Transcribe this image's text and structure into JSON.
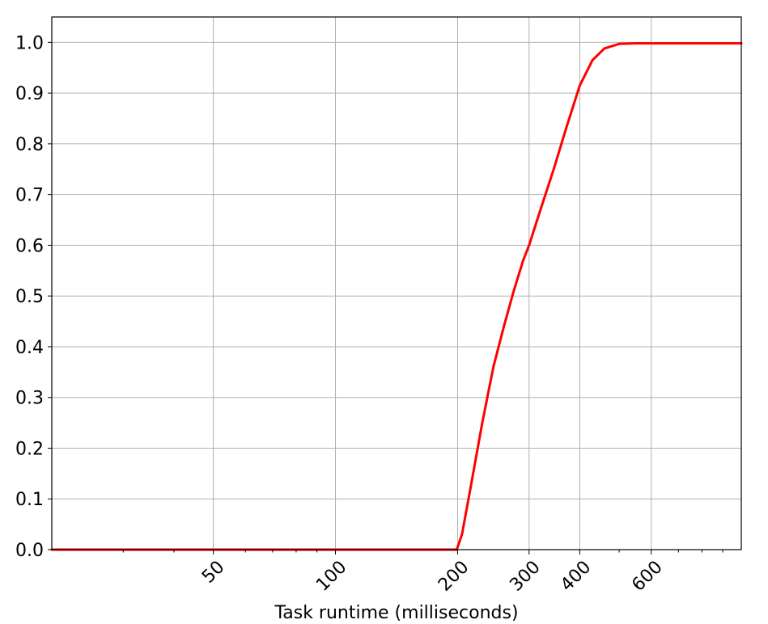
{
  "chart_data": {
    "type": "line",
    "xscale": "log",
    "xlim": [
      20,
      1000
    ],
    "ylim": [
      0,
      1.05
    ],
    "xlabel": "Task runtime (milliseconds)",
    "ylabel": "",
    "title": "",
    "grid": true,
    "x_ticks": [
      {
        "value": 50,
        "label": "50"
      },
      {
        "value": 100,
        "label": "100"
      },
      {
        "value": 200,
        "label": "200"
      },
      {
        "value": 300,
        "label": "300"
      },
      {
        "value": 400,
        "label": "400"
      },
      {
        "value": 600,
        "label": "600"
      }
    ],
    "y_ticks": [
      {
        "value": 0.0,
        "label": "0.0"
      },
      {
        "value": 0.1,
        "label": "0.1"
      },
      {
        "value": 0.2,
        "label": "0.2"
      },
      {
        "value": 0.3,
        "label": "0.3"
      },
      {
        "value": 0.4,
        "label": "0.4"
      },
      {
        "value": 0.5,
        "label": "0.5"
      },
      {
        "value": 0.6,
        "label": "0.6"
      },
      {
        "value": 0.7,
        "label": "0.7"
      },
      {
        "value": 0.8,
        "label": "0.8"
      },
      {
        "value": 0.9,
        "label": "0.9"
      },
      {
        "value": 1.0,
        "label": "1.0"
      }
    ],
    "series": [
      {
        "color": "#ff0000",
        "x": [
          20,
          100,
          199,
          205,
          215,
          230,
          245,
          260,
          275,
          290,
          300,
          320,
          345,
          370,
          400,
          430,
          460,
          500,
          550,
          600,
          800,
          1000
        ],
        "y": [
          0.0,
          0.0,
          0.0,
          0.03,
          0.12,
          0.25,
          0.36,
          0.44,
          0.51,
          0.57,
          0.6,
          0.67,
          0.75,
          0.83,
          0.915,
          0.965,
          0.988,
          0.997,
          0.998,
          0.998,
          0.998,
          0.998
        ]
      }
    ]
  }
}
